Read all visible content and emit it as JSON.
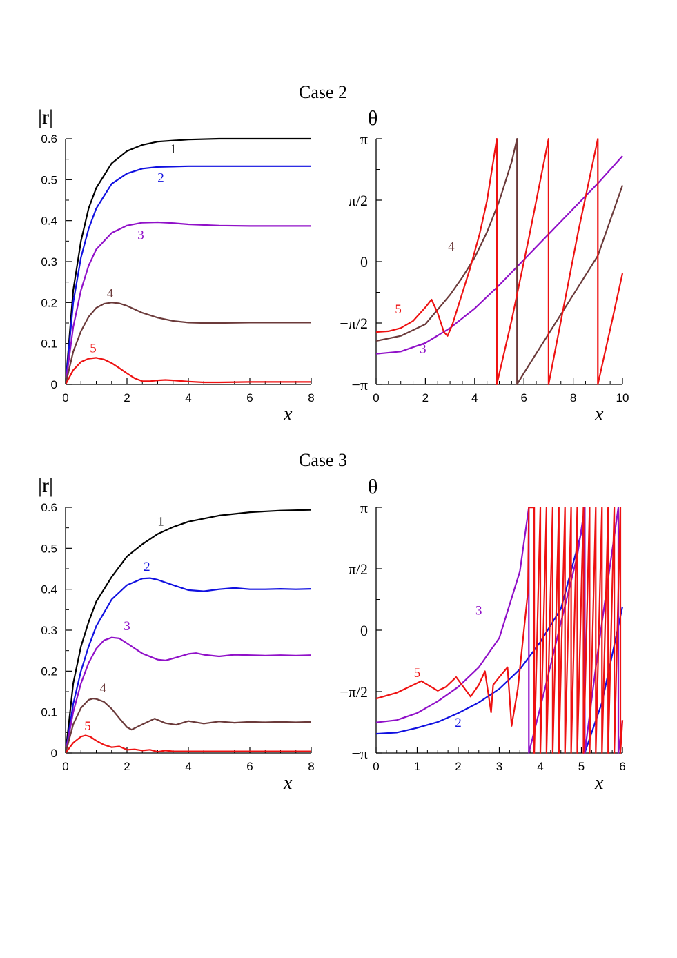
{
  "cases": [
    {
      "title": "Case 2"
    },
    {
      "title": "Case 3"
    }
  ],
  "colors": {
    "1": "#000000",
    "2": "#1010e0",
    "3": "#9010c8",
    "4": "#6b3a3a",
    "5": "#ee1111"
  },
  "chart_data": [
    {
      "type": "line",
      "ylabel": "|r|",
      "xlabel": "x",
      "xlim": [
        0,
        8
      ],
      "ylim": [
        0,
        0.6
      ],
      "xticks": [
        "0",
        "2",
        "4",
        "6",
        "8"
      ],
      "yticks": [
        "0",
        "0.1",
        "0.2",
        "0.3",
        "0.4",
        "0.5",
        "0.6"
      ],
      "series": [
        {
          "name": "1",
          "x": [
            0,
            0.25,
            0.5,
            0.75,
            1,
            1.5,
            2,
            2.5,
            3,
            4,
            5,
            6,
            7,
            8
          ],
          "y": [
            0,
            0.23,
            0.35,
            0.43,
            0.48,
            0.54,
            0.57,
            0.585,
            0.593,
            0.598,
            0.6,
            0.6,
            0.6,
            0.6
          ]
        },
        {
          "name": "2",
          "x": [
            0,
            0.25,
            0.5,
            0.75,
            1,
            1.5,
            2,
            2.5,
            3,
            4,
            5,
            6,
            7,
            8
          ],
          "y": [
            0,
            0.2,
            0.31,
            0.38,
            0.43,
            0.49,
            0.515,
            0.527,
            0.531,
            0.533,
            0.533,
            0.533,
            0.533,
            0.533
          ]
        },
        {
          "name": "3",
          "x": [
            0,
            0.25,
            0.5,
            0.75,
            1,
            1.5,
            2,
            2.5,
            3,
            3.5,
            4,
            5,
            6,
            7,
            8
          ],
          "y": [
            0,
            0.14,
            0.23,
            0.29,
            0.33,
            0.37,
            0.388,
            0.395,
            0.396,
            0.394,
            0.391,
            0.388,
            0.387,
            0.387,
            0.387
          ]
        },
        {
          "name": "4",
          "x": [
            0,
            0.25,
            0.5,
            0.75,
            1,
            1.25,
            1.5,
            1.75,
            2,
            2.5,
            3,
            3.5,
            4,
            4.5,
            5,
            6,
            7,
            8
          ],
          "y": [
            0,
            0.08,
            0.13,
            0.165,
            0.187,
            0.197,
            0.2,
            0.198,
            0.192,
            0.175,
            0.163,
            0.155,
            0.151,
            0.15,
            0.15,
            0.151,
            0.151,
            0.151
          ]
        },
        {
          "name": "5",
          "x": [
            0,
            0.25,
            0.5,
            0.75,
            1,
            1.25,
            1.5,
            1.75,
            2,
            2.25,
            2.5,
            2.75,
            3,
            3.25,
            3.5,
            4,
            4.5,
            5,
            6,
            7,
            8
          ],
          "y": [
            0,
            0.035,
            0.055,
            0.063,
            0.065,
            0.061,
            0.052,
            0.04,
            0.027,
            0.015,
            0.008,
            0.008,
            0.01,
            0.011,
            0.01,
            0.007,
            0.005,
            0.005,
            0.006,
            0.006,
            0.006
          ]
        }
      ],
      "curve_labels": [
        {
          "text": "1",
          "x": 3.5,
          "y": 0.565
        },
        {
          "text": "2",
          "x": 3.1,
          "y": 0.495
        },
        {
          "text": "3",
          "x": 2.45,
          "y": 0.355
        },
        {
          "text": "4",
          "x": 1.45,
          "y": 0.212
        },
        {
          "text": "5",
          "x": 0.9,
          "y": 0.078
        }
      ]
    },
    {
      "type": "line",
      "ylabel": "θ",
      "xlabel": "x",
      "xlim": [
        0,
        10
      ],
      "ylim": [
        -3.14159,
        3.14159
      ],
      "xticks": [
        "0",
        "2",
        "4",
        "6",
        "8",
        "10"
      ],
      "yticks": [
        "−π",
        "−π/2",
        "0",
        "π/2",
        "π"
      ],
      "series": [
        {
          "name": "3",
          "x": [
            0,
            1,
            2,
            3,
            4,
            5,
            6,
            7,
            8,
            9,
            10
          ],
          "y": [
            -2.36,
            -2.3,
            -2.08,
            -1.7,
            -1.2,
            -0.6,
            0.05,
            0.7,
            1.35,
            2.0,
            2.7
          ]
        },
        {
          "name": "4",
          "x": [
            0,
            1,
            2,
            3,
            3.5,
            4,
            4.5,
            5,
            5.5,
            5.72,
            5.72,
            6,
            7,
            8,
            9,
            10
          ],
          "y": [
            -2.03,
            -1.9,
            -1.6,
            -0.85,
            -0.4,
            0.1,
            0.75,
            1.55,
            2.55,
            3.14,
            -3.14,
            -2.85,
            -1.85,
            -0.85,
            0.15,
            1.95
          ]
        },
        {
          "name": "5",
          "x": [
            0,
            0.5,
            1,
            1.5,
            2,
            2.25,
            2.5,
            2.75,
            2.9,
            3.1,
            3.4,
            3.8,
            4.2,
            4.5,
            4.9,
            4.9,
            5.5,
            6.2,
            7.0,
            7.0,
            7.6,
            8.2,
            9.0,
            9.0,
            9.6,
            10
          ],
          "y": [
            -1.8,
            -1.78,
            -1.7,
            -1.52,
            -1.17,
            -0.97,
            -1.32,
            -1.8,
            -1.9,
            -1.6,
            -1.0,
            -0.2,
            0.7,
            1.55,
            3.14,
            -3.14,
            -1.5,
            0.6,
            3.14,
            -3.14,
            -1.2,
            0.75,
            3.14,
            -3.14,
            -1.45,
            -0.3
          ]
        }
      ],
      "curve_labels": [
        {
          "text": "3",
          "x": 1.9,
          "y": -2.34
        },
        {
          "text": "4",
          "x": 3.05,
          "y": 0.28
        },
        {
          "text": "5",
          "x": 0.9,
          "y": -1.32
        }
      ]
    },
    {
      "type": "line",
      "ylabel": "|r|",
      "xlabel": "x",
      "xlim": [
        0,
        8
      ],
      "ylim": [
        0,
        0.6
      ],
      "xticks": [
        "0",
        "2",
        "4",
        "6",
        "8"
      ],
      "yticks": [
        "0",
        "0.1",
        "0.2",
        "0.3",
        "0.4",
        "0.5",
        "0.6"
      ],
      "series": [
        {
          "name": "1",
          "x": [
            0,
            0.25,
            0.5,
            0.75,
            1,
            1.5,
            2,
            2.5,
            3,
            3.5,
            4,
            5,
            6,
            7,
            8
          ],
          "y": [
            0,
            0.17,
            0.26,
            0.32,
            0.37,
            0.43,
            0.48,
            0.51,
            0.535,
            0.552,
            0.565,
            0.58,
            0.588,
            0.592,
            0.594
          ]
        },
        {
          "name": "2",
          "x": [
            0,
            0.25,
            0.5,
            0.75,
            1,
            1.5,
            2,
            2.5,
            2.75,
            3,
            3.5,
            4,
            4.5,
            5,
            5.5,
            6,
            6.5,
            7,
            7.5,
            8
          ],
          "y": [
            0,
            0.12,
            0.2,
            0.26,
            0.31,
            0.375,
            0.41,
            0.426,
            0.427,
            0.423,
            0.41,
            0.398,
            0.395,
            0.4,
            0.403,
            0.4,
            0.4,
            0.401,
            0.4,
            0.401
          ]
        },
        {
          "name": "3",
          "x": [
            0,
            0.25,
            0.5,
            0.75,
            1,
            1.25,
            1.5,
            1.75,
            2,
            2.5,
            3,
            3.25,
            3.5,
            4,
            4.25,
            4.5,
            5,
            5.5,
            6,
            6.5,
            7,
            7.5,
            8
          ],
          "y": [
            0,
            0.1,
            0.17,
            0.22,
            0.255,
            0.275,
            0.282,
            0.28,
            0.268,
            0.243,
            0.228,
            0.226,
            0.231,
            0.242,
            0.244,
            0.24,
            0.236,
            0.24,
            0.239,
            0.238,
            0.239,
            0.238,
            0.239
          ]
        },
        {
          "name": "4",
          "x": [
            0,
            0.25,
            0.5,
            0.75,
            0.9,
            1,
            1.25,
            1.5,
            1.75,
            2,
            2.15,
            2.5,
            2.9,
            3.25,
            3.6,
            4,
            4.5,
            5,
            5.5,
            6,
            6.5,
            7,
            7.5,
            8
          ],
          "y": [
            0,
            0.07,
            0.11,
            0.13,
            0.133,
            0.132,
            0.125,
            0.108,
            0.085,
            0.063,
            0.057,
            0.07,
            0.084,
            0.073,
            0.069,
            0.078,
            0.072,
            0.077,
            0.074,
            0.076,
            0.075,
            0.076,
            0.075,
            0.076
          ]
        },
        {
          "name": "5",
          "x": [
            0,
            0.25,
            0.5,
            0.65,
            0.8,
            1,
            1.25,
            1.5,
            1.75,
            2,
            2.25,
            2.5,
            2.75,
            3,
            3.25,
            3.5,
            4,
            5,
            6,
            7,
            8
          ],
          "y": [
            0,
            0.025,
            0.04,
            0.043,
            0.04,
            0.03,
            0.02,
            0.014,
            0.016,
            0.008,
            0.009,
            0.006,
            0.008,
            0.003,
            0.006,
            0.004,
            0.004,
            0.004,
            0.004,
            0.004,
            0.004
          ]
        }
      ],
      "curve_labels": [
        {
          "text": "1",
          "x": 3.1,
          "y": 0.555
        },
        {
          "text": "2",
          "x": 2.65,
          "y": 0.445
        },
        {
          "text": "3",
          "x": 2.0,
          "y": 0.3
        },
        {
          "text": "4",
          "x": 1.22,
          "y": 0.148
        },
        {
          "text": "5",
          "x": 0.72,
          "y": 0.056
        }
      ]
    },
    {
      "type": "line",
      "ylabel": "θ",
      "xlabel": "x",
      "xlim": [
        0,
        6
      ],
      "ylim": [
        -3.14159,
        3.14159
      ],
      "xticks": [
        "0",
        "1",
        "2",
        "3",
        "4",
        "5",
        "6"
      ],
      "yticks": [
        "−π",
        "−π/2",
        "0",
        "π/2",
        "π"
      ],
      "series": [
        {
          "name": "2",
          "x": [
            0,
            0.5,
            1,
            1.5,
            2,
            2.5,
            3,
            3.5,
            4,
            4.5,
            5,
            5.08,
            5.08,
            5.5,
            6
          ],
          "y": [
            -2.65,
            -2.62,
            -2.5,
            -2.35,
            -2.12,
            -1.85,
            -1.5,
            -1.0,
            -0.3,
            0.55,
            2.5,
            3.14,
            -3.14,
            -1.85,
            0.6
          ]
        },
        {
          "name": "3",
          "x": [
            0,
            0.5,
            1,
            1.5,
            2,
            2.5,
            3,
            3.5,
            3.72,
            3.72,
            4.1,
            4.5,
            4.9,
            5.08,
            5.08,
            5.4,
            5.9,
            5.9,
            6
          ],
          "y": [
            -2.36,
            -2.3,
            -2.12,
            -1.82,
            -1.45,
            -0.95,
            -0.2,
            1.5,
            3.14,
            -3.14,
            -1.55,
            0.2,
            1.9,
            3.14,
            -3.14,
            -0.55,
            3.14,
            -3.14,
            -2.3
          ]
        },
        {
          "name": "5",
          "x": [
            0,
            0.5,
            1.1,
            1.5,
            1.7,
            1.95,
            2.3,
            2.5,
            2.65,
            2.8,
            2.85,
            3.0,
            3.2,
            3.3,
            3.45,
            3.7,
            3.72,
            3.85,
            3.85,
            4.0,
            4.0,
            4.15,
            4.15,
            4.3,
            4.3,
            4.45,
            4.45,
            4.6,
            4.6,
            4.75,
            4.75,
            4.9,
            4.9,
            5.05,
            5.05,
            5.2,
            5.2,
            5.35,
            5.35,
            5.5,
            5.5,
            5.65,
            5.65,
            5.8,
            5.8,
            5.95,
            5.95,
            6
          ],
          "y": [
            -1.75,
            -1.6,
            -1.3,
            -1.55,
            -1.45,
            -1.2,
            -1.7,
            -1.4,
            -1.05,
            -2.1,
            -1.4,
            -1.2,
            -0.95,
            -2.45,
            -1.5,
            1.0,
            3.14,
            3.14,
            -3.14,
            3.14,
            -3.14,
            3.14,
            -3.14,
            3.14,
            -3.14,
            3.14,
            -3.14,
            3.14,
            -3.14,
            3.14,
            -3.14,
            3.14,
            -3.14,
            3.14,
            -3.14,
            3.14,
            -3.14,
            3.14,
            -3.14,
            3.14,
            -3.14,
            3.14,
            -3.14,
            3.14,
            -3.14,
            3.14,
            -3.14,
            -2.3
          ]
        }
      ],
      "curve_labels": [
        {
          "text": "2",
          "x": 2.0,
          "y": -2.47
        },
        {
          "text": "3",
          "x": 2.5,
          "y": 0.4
        },
        {
          "text": "5",
          "x": 1.0,
          "y": -1.2
        }
      ]
    }
  ]
}
